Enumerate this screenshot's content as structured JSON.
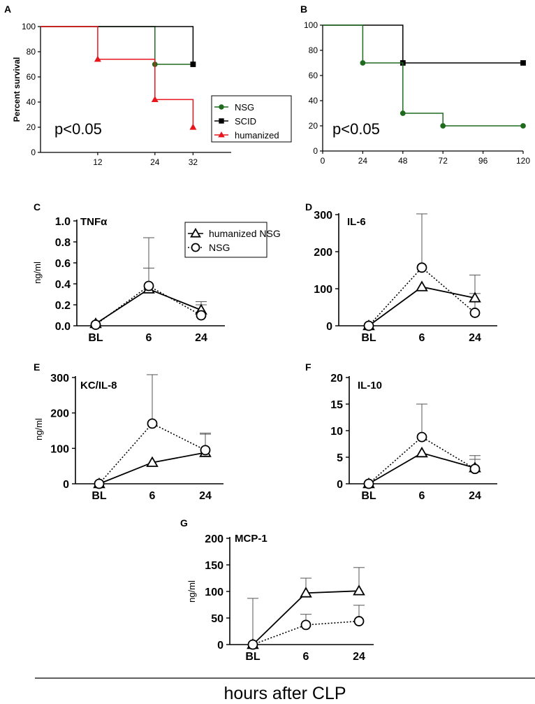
{
  "footer_label": "hours after CLP",
  "chart_data": [
    {
      "panel": "A",
      "type": "survival",
      "ylabel": "Percent survival",
      "xlim": [
        0,
        40
      ],
      "ylim": [
        0,
        100
      ],
      "xticks": [
        12,
        24,
        32
      ],
      "yticks": [
        0,
        20,
        40,
        60,
        80,
        100
      ],
      "annotation": "p<0.05",
      "legend": [
        "NSG",
        "SCID",
        "humanized"
      ],
      "series": [
        {
          "name": "NSG",
          "color": "#1e6b1e",
          "marker": "circle",
          "steps": [
            [
              0,
              100
            ],
            [
              24,
              70
            ],
            [
              32,
              70
            ]
          ],
          "markers": [
            [
              24,
              70
            ],
            [
              32,
              70
            ]
          ]
        },
        {
          "name": "SCID",
          "color": "#000000",
          "marker": "square",
          "steps": [
            [
              0,
              100
            ],
            [
              32,
              70
            ]
          ],
          "markers": [
            [
              32,
              70
            ]
          ]
        },
        {
          "name": "humanized",
          "color": "#e8161b",
          "marker": "triangle",
          "steps": [
            [
              0,
              100
            ],
            [
              12,
              74
            ],
            [
              24,
              42
            ],
            [
              32,
              20
            ]
          ],
          "markers": [
            [
              12,
              74
            ],
            [
              24,
              42
            ],
            [
              32,
              20
            ]
          ]
        }
      ]
    },
    {
      "panel": "B",
      "type": "survival",
      "ylabel": "",
      "xlim": [
        0,
        120
      ],
      "ylim": [
        0,
        100
      ],
      "xticks": [
        0,
        24,
        48,
        72,
        96,
        120
      ],
      "yticks": [
        0,
        20,
        40,
        60,
        80,
        100
      ],
      "annotation": "p<0.05",
      "series": [
        {
          "name": "SCID",
          "color": "#000000",
          "marker": "square",
          "steps": [
            [
              0,
              100
            ],
            [
              48,
              70
            ],
            [
              120,
              70
            ]
          ],
          "markers": [
            [
              48,
              70
            ],
            [
              120,
              70
            ]
          ]
        },
        {
          "name": "NSG",
          "color": "#1e6b1e",
          "marker": "circle",
          "steps": [
            [
              0,
              100
            ],
            [
              24,
              70
            ],
            [
              48,
              30
            ],
            [
              72,
              20
            ],
            [
              120,
              20
            ]
          ],
          "markers": [
            [
              24,
              70
            ],
            [
              48,
              30
            ],
            [
              72,
              20
            ],
            [
              120,
              20
            ]
          ]
        }
      ]
    },
    {
      "panel": "C",
      "type": "line",
      "title": "TNFα",
      "ylabel": "ng/ml",
      "categories": [
        "BL",
        "6",
        "24"
      ],
      "ylim": [
        0,
        1.0
      ],
      "yticks": [
        "0.0",
        "0.2",
        "0.4",
        "0.6",
        "0.8",
        "1.0"
      ],
      "legend": [
        "humanized NSG",
        "NSG"
      ],
      "series": [
        {
          "name": "humanized NSG",
          "marker": "triangle",
          "style": "solid",
          "values": [
            0.02,
            0.35,
            0.15
          ],
          "error": [
            0,
            0.2,
            0.08
          ]
        },
        {
          "name": "NSG",
          "marker": "circle",
          "style": "dotted",
          "values": [
            0.01,
            0.38,
            0.1
          ],
          "error": [
            0,
            0.46,
            0.1
          ]
        }
      ]
    },
    {
      "panel": "D",
      "type": "line",
      "title": "IL-6",
      "ylabel": "",
      "categories": [
        "BL",
        "6",
        "24"
      ],
      "ylim": [
        0,
        300
      ],
      "yticks": [
        "0",
        "100",
        "200",
        "300"
      ],
      "series": [
        {
          "name": "humanized NSG",
          "marker": "triangle",
          "style": "solid",
          "values": [
            0,
            105,
            75
          ],
          "error": [
            0,
            0,
            62
          ]
        },
        {
          "name": "NSG",
          "marker": "circle",
          "style": "dotted",
          "values": [
            0,
            157,
            35
          ],
          "error": [
            0,
            145,
            52
          ]
        }
      ]
    },
    {
      "panel": "E",
      "type": "line",
      "title": "KC/IL-8",
      "ylabel": "ng/ml",
      "categories": [
        "BL",
        "6",
        "24"
      ],
      "ylim": [
        0,
        300
      ],
      "yticks": [
        "0",
        "100",
        "200",
        "300"
      ],
      "series": [
        {
          "name": "humanized NSG",
          "marker": "triangle",
          "style": "solid",
          "values": [
            0,
            60,
            88
          ],
          "error": [
            0,
            0,
            55
          ]
        },
        {
          "name": "NSG",
          "marker": "circle",
          "style": "dotted",
          "values": [
            0,
            170,
            95
          ],
          "error": [
            0,
            138,
            45
          ]
        }
      ]
    },
    {
      "panel": "F",
      "type": "line",
      "title": "IL-10",
      "ylabel": "",
      "categories": [
        "BL",
        "6",
        "24"
      ],
      "ylim": [
        0,
        20
      ],
      "yticks": [
        "0",
        "5",
        "10",
        "15",
        "20"
      ],
      "series": [
        {
          "name": "humanized NSG",
          "marker": "triangle",
          "style": "solid",
          "values": [
            0,
            5.8,
            3.0
          ],
          "error": [
            0,
            0,
            2.3
          ]
        },
        {
          "name": "NSG",
          "marker": "circle",
          "style": "dotted",
          "values": [
            0,
            8.8,
            2.8
          ],
          "error": [
            0,
            6.2,
            1.8
          ]
        }
      ]
    },
    {
      "panel": "G",
      "type": "line",
      "title": "MCP-1",
      "ylabel": "ng/ml",
      "categories": [
        "BL",
        "6",
        "24"
      ],
      "ylim": [
        0,
        200
      ],
      "yticks": [
        "0",
        "50",
        "100",
        "150",
        "200"
      ],
      "series": [
        {
          "name": "humanized NSG",
          "marker": "triangle",
          "style": "solid",
          "values": [
            0,
            97,
            101
          ],
          "error": [
            87,
            28,
            44
          ]
        },
        {
          "name": "NSG",
          "marker": "circle",
          "style": "dotted",
          "values": [
            0,
            37,
            44
          ],
          "error": [
            0,
            20,
            30
          ]
        }
      ]
    }
  ]
}
